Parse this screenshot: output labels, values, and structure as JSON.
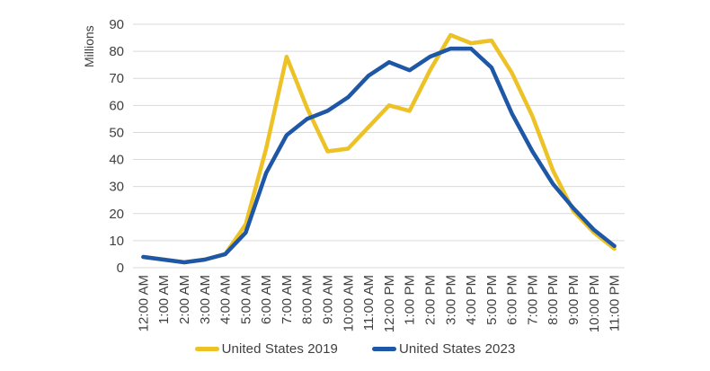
{
  "chart_data": {
    "type": "line",
    "title": "",
    "ylabel": "Millions",
    "xlabel": "",
    "ylim": [
      0,
      90
    ],
    "ytick_step": 10,
    "grid": "horizontal",
    "legend_position": "bottom-center",
    "categories": [
      "12:00 AM",
      "1:00 AM",
      "2:00 AM",
      "3:00 AM",
      "4:00 AM",
      "5:00 AM",
      "6:00 AM",
      "7:00 AM",
      "8:00 AM",
      "9:00 AM",
      "10:00 AM",
      "11:00 AM",
      "12:00 PM",
      "1:00 PM",
      "2:00 PM",
      "3:00 PM",
      "4:00 PM",
      "5:00 PM",
      "6:00 PM",
      "7:00 PM",
      "8:00 PM",
      "9:00 PM",
      "10:00 PM",
      "11:00 PM"
    ],
    "series": [
      {
        "name": "United States 2019",
        "color": "#EDC226",
        "values": [
          4,
          3,
          2,
          3,
          5,
          16,
          44,
          78,
          59,
          43,
          44,
          52,
          60,
          58,
          73,
          86,
          83,
          84,
          72,
          56,
          36,
          21,
          13,
          7
        ]
      },
      {
        "name": "United States 2023",
        "color": "#1D57A6",
        "values": [
          4,
          3,
          2,
          3,
          5,
          13,
          35,
          49,
          55,
          58,
          63,
          71,
          76,
          73,
          78,
          81,
          81,
          74,
          57,
          43,
          31,
          22,
          14,
          8
        ]
      }
    ],
    "colors": {
      "gridline": "#d9d9d9",
      "tick_text": "#3f3f3f"
    }
  },
  "legend": {
    "items": [
      {
        "label": "United States 2019"
      },
      {
        "label": "United States 2023"
      }
    ]
  }
}
